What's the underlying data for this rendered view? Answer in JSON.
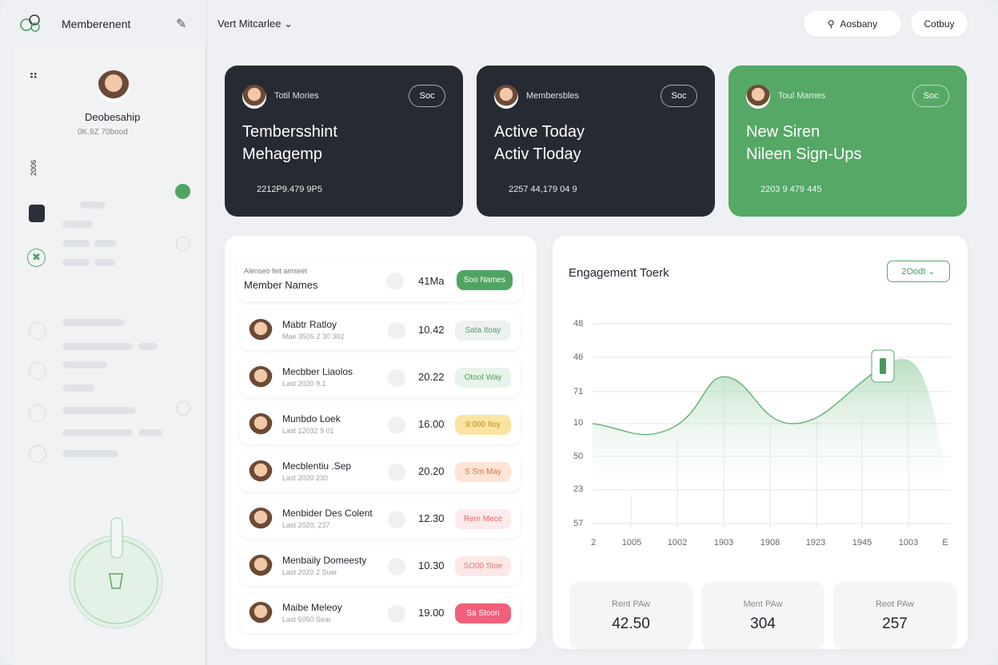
{
  "header": {
    "brand": "Memberenent",
    "workspace": "Vert Mitcarlee",
    "search": "Aosbany",
    "button": "Cotbuy"
  },
  "sidebar": {
    "user": "Deobesahip",
    "user_sub": "0K.9Z 70bood",
    "vertical": "2006"
  },
  "cards": [
    {
      "label": "Totil Mories",
      "button": "Soc",
      "title": [
        "Tembersshint",
        "Mehagemp"
      ],
      "stat": "2212P9.479 9P5"
    },
    {
      "label": "Membersbles",
      "button": "Soc",
      "title": [
        "Active Today",
        "Activ Tloday"
      ],
      "stat": "2257 44,179 04 9"
    },
    {
      "label": "Toul Mames",
      "button": "Soc",
      "title": [
        "New Siren",
        "Nileen Sign-Ups"
      ],
      "stat": "2203 9 479 445"
    }
  ],
  "members": {
    "caption": "Alenseo feit amseet",
    "title": "Member Names",
    "value": "41Ma",
    "button": "Soo Names",
    "rows": [
      {
        "name": "Mabtr Ratloy",
        "sub": "Mae 3505 2 30 302",
        "value": "10.42",
        "badge": "Sata Itoay"
      },
      {
        "name": "Mecbber Liaolos",
        "sub": "Last 2020 9.1",
        "value": "20.22",
        "badge": "Otoot Way"
      },
      {
        "name": "Munbdo Loek",
        "sub": "Last 12032 9 01",
        "value": "16.00",
        "badge": "9:000 Itoy"
      },
      {
        "name": "Mecblentiu .Sep",
        "sub": "Last 2020 230",
        "value": "20.20",
        "badge": "S Sm May"
      },
      {
        "name": "Menbider Des Colent",
        "sub": "Last 2020, 237",
        "value": "12.30",
        "badge": "Rem Mece"
      },
      {
        "name": "Menbaily Domeesty",
        "sub": "Last 2020 2 Suer",
        "value": "10.30",
        "badge": "SO00 Stoe"
      },
      {
        "name": "Maibe Meleoy",
        "sub": "Last 5050 Sear",
        "value": "19.00",
        "badge": "Sa Stoon"
      }
    ]
  },
  "engagement": {
    "title": "Engagement Toerk",
    "dropdown": "2Oodt",
    "y_labels": [
      "48",
      "46",
      "71",
      "10",
      "50",
      "23",
      "57"
    ],
    "x_labels": [
      "2",
      "1005",
      "1002",
      "1903",
      "1908",
      "1923",
      "1945",
      "1003",
      "E"
    ]
  },
  "stats": [
    {
      "label": "Rent PAw",
      "value": "42.50"
    },
    {
      "label": "Ment PAw",
      "value": "304"
    },
    {
      "label": "Reot PAw",
      "value": "257"
    }
  ]
}
